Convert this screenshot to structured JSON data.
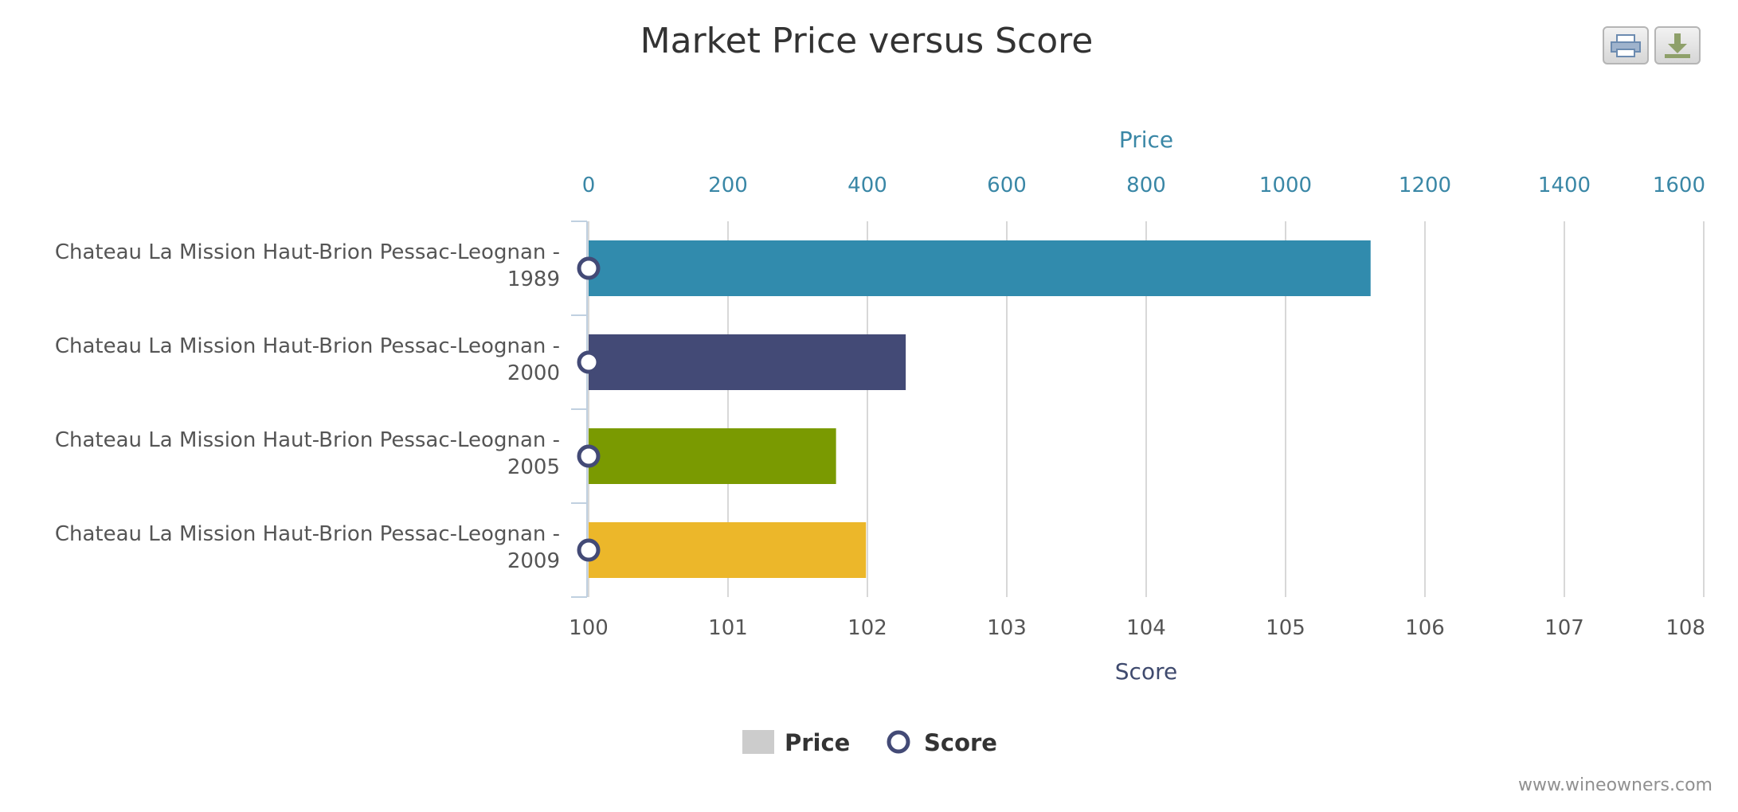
{
  "chart_data": {
    "type": "bar",
    "title": "Market Price versus Score",
    "categories": [
      "Chateau La Mission Haut-Brion Pessac-Leognan - 1989",
      "Chateau La Mission Haut-Brion Pessac-Leognan - 2000",
      "Chateau La Mission Haut-Brion Pessac-Leognan - 2005",
      "Chateau La Mission Haut-Brion Pessac-Leognan - 2009"
    ],
    "category_lines": [
      [
        "Chateau La Mission Haut-Brion Pessac-Leognan -",
        "1989"
      ],
      [
        "Chateau La Mission Haut-Brion Pessac-Leognan -",
        "2000"
      ],
      [
        "Chateau La Mission Haut-Brion Pessac-Leognan -",
        "2005"
      ],
      [
        "Chateau La Mission Haut-Brion Pessac-Leognan -",
        "2009"
      ]
    ],
    "series": [
      {
        "name": "Price",
        "type": "bar",
        "values": [
          1122,
          455,
          355,
          398
        ],
        "colors": [
          "#318bad",
          "#434a76",
          "#7a9a01",
          "#ecb72a"
        ]
      },
      {
        "name": "Score",
        "type": "scatter",
        "values": [
          100,
          100,
          100,
          100
        ],
        "color": "#434a76"
      }
    ],
    "price_axis": {
      "title": "Price",
      "position": "top",
      "min": 0,
      "max": 1600,
      "ticks": [
        "0",
        "200",
        "400",
        "600",
        "800",
        "1000",
        "1200",
        "1400",
        "1600"
      ],
      "color": "#3a87a6"
    },
    "score_axis": {
      "title": "Score",
      "position": "bottom",
      "min": 100,
      "max": 108,
      "ticks": [
        "100",
        "101",
        "102",
        "103",
        "104",
        "105",
        "106",
        "107",
        "108"
      ],
      "color": "#3f4a6e"
    },
    "grid": true,
    "legend": {
      "position": "bottom-center",
      "items": [
        "Price",
        "Score"
      ],
      "price_swatch": "#cccccc"
    }
  },
  "export": {
    "print_icon": "print-icon",
    "download_icon": "download-icon"
  },
  "credits": "www.wineowners.com"
}
